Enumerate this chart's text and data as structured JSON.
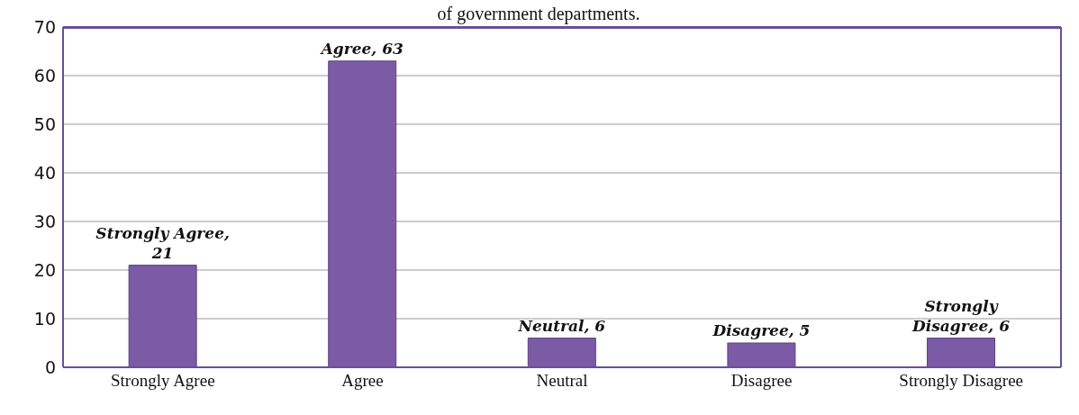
{
  "chart_data": {
    "type": "bar",
    "title": "of government departments.",
    "categories": [
      "Strongly Agree",
      "Agree",
      "Neutral",
      "Disagree",
      "Strongly Disagree"
    ],
    "values": [
      21,
      63,
      6,
      5,
      6
    ],
    "value_labels": [
      "Strongly Agree, 21",
      "Agree, 63",
      "Neutral, 6",
      "Disagree, 5",
      "Strongly Disagree, 6"
    ],
    "color": "#7b5ba6",
    "ylim": [
      0,
      70
    ],
    "yticks": [
      0,
      10,
      20,
      30,
      40,
      50,
      60,
      70
    ],
    "grid": "y",
    "legend": false
  }
}
